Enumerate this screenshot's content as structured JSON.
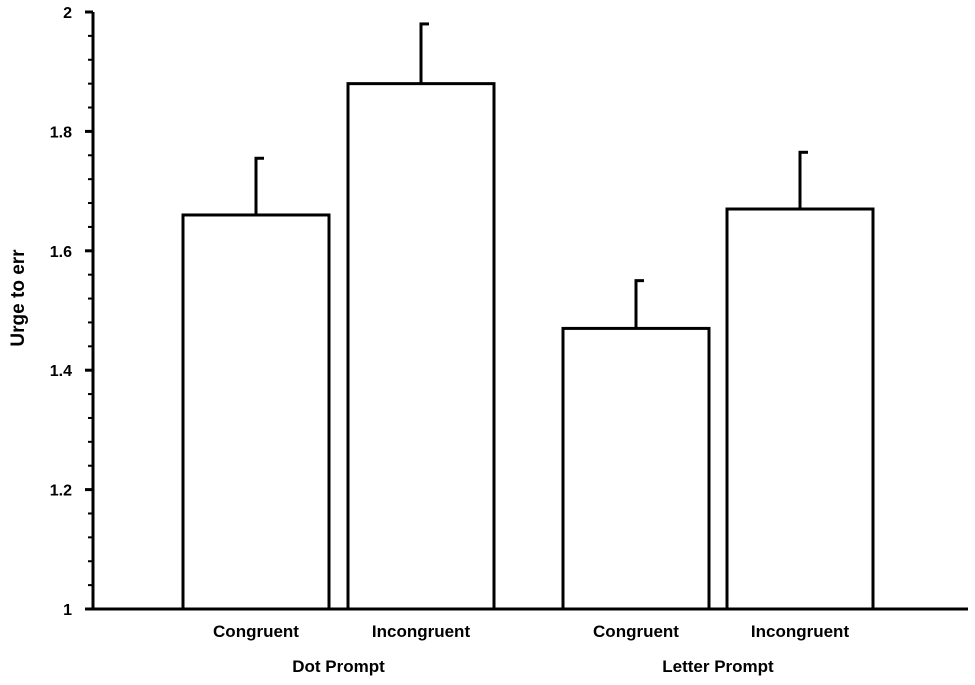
{
  "chart_data": {
    "type": "bar",
    "ylabel": "Urge to err",
    "ylim": [
      1,
      2
    ],
    "y_ticks": [
      "1",
      "1.2",
      "1.4",
      "1.6",
      "1.8",
      "2"
    ],
    "grid": false,
    "legend": "none",
    "bar_fill": "#ffffff",
    "bar_stroke": "#000000",
    "groups": [
      {
        "label": "Dot Prompt",
        "bars": [
          {
            "label": "Congruent",
            "value": 1.66,
            "error": 0.095
          },
          {
            "label": "Incongruent",
            "value": 1.88,
            "error": 0.1
          }
        ]
      },
      {
        "label": "Letter Prompt",
        "bars": [
          {
            "label": "Congruent",
            "value": 1.47,
            "error": 0.08
          },
          {
            "label": "Incongruent",
            "value": 1.67,
            "error": 0.095
          }
        ]
      }
    ]
  }
}
